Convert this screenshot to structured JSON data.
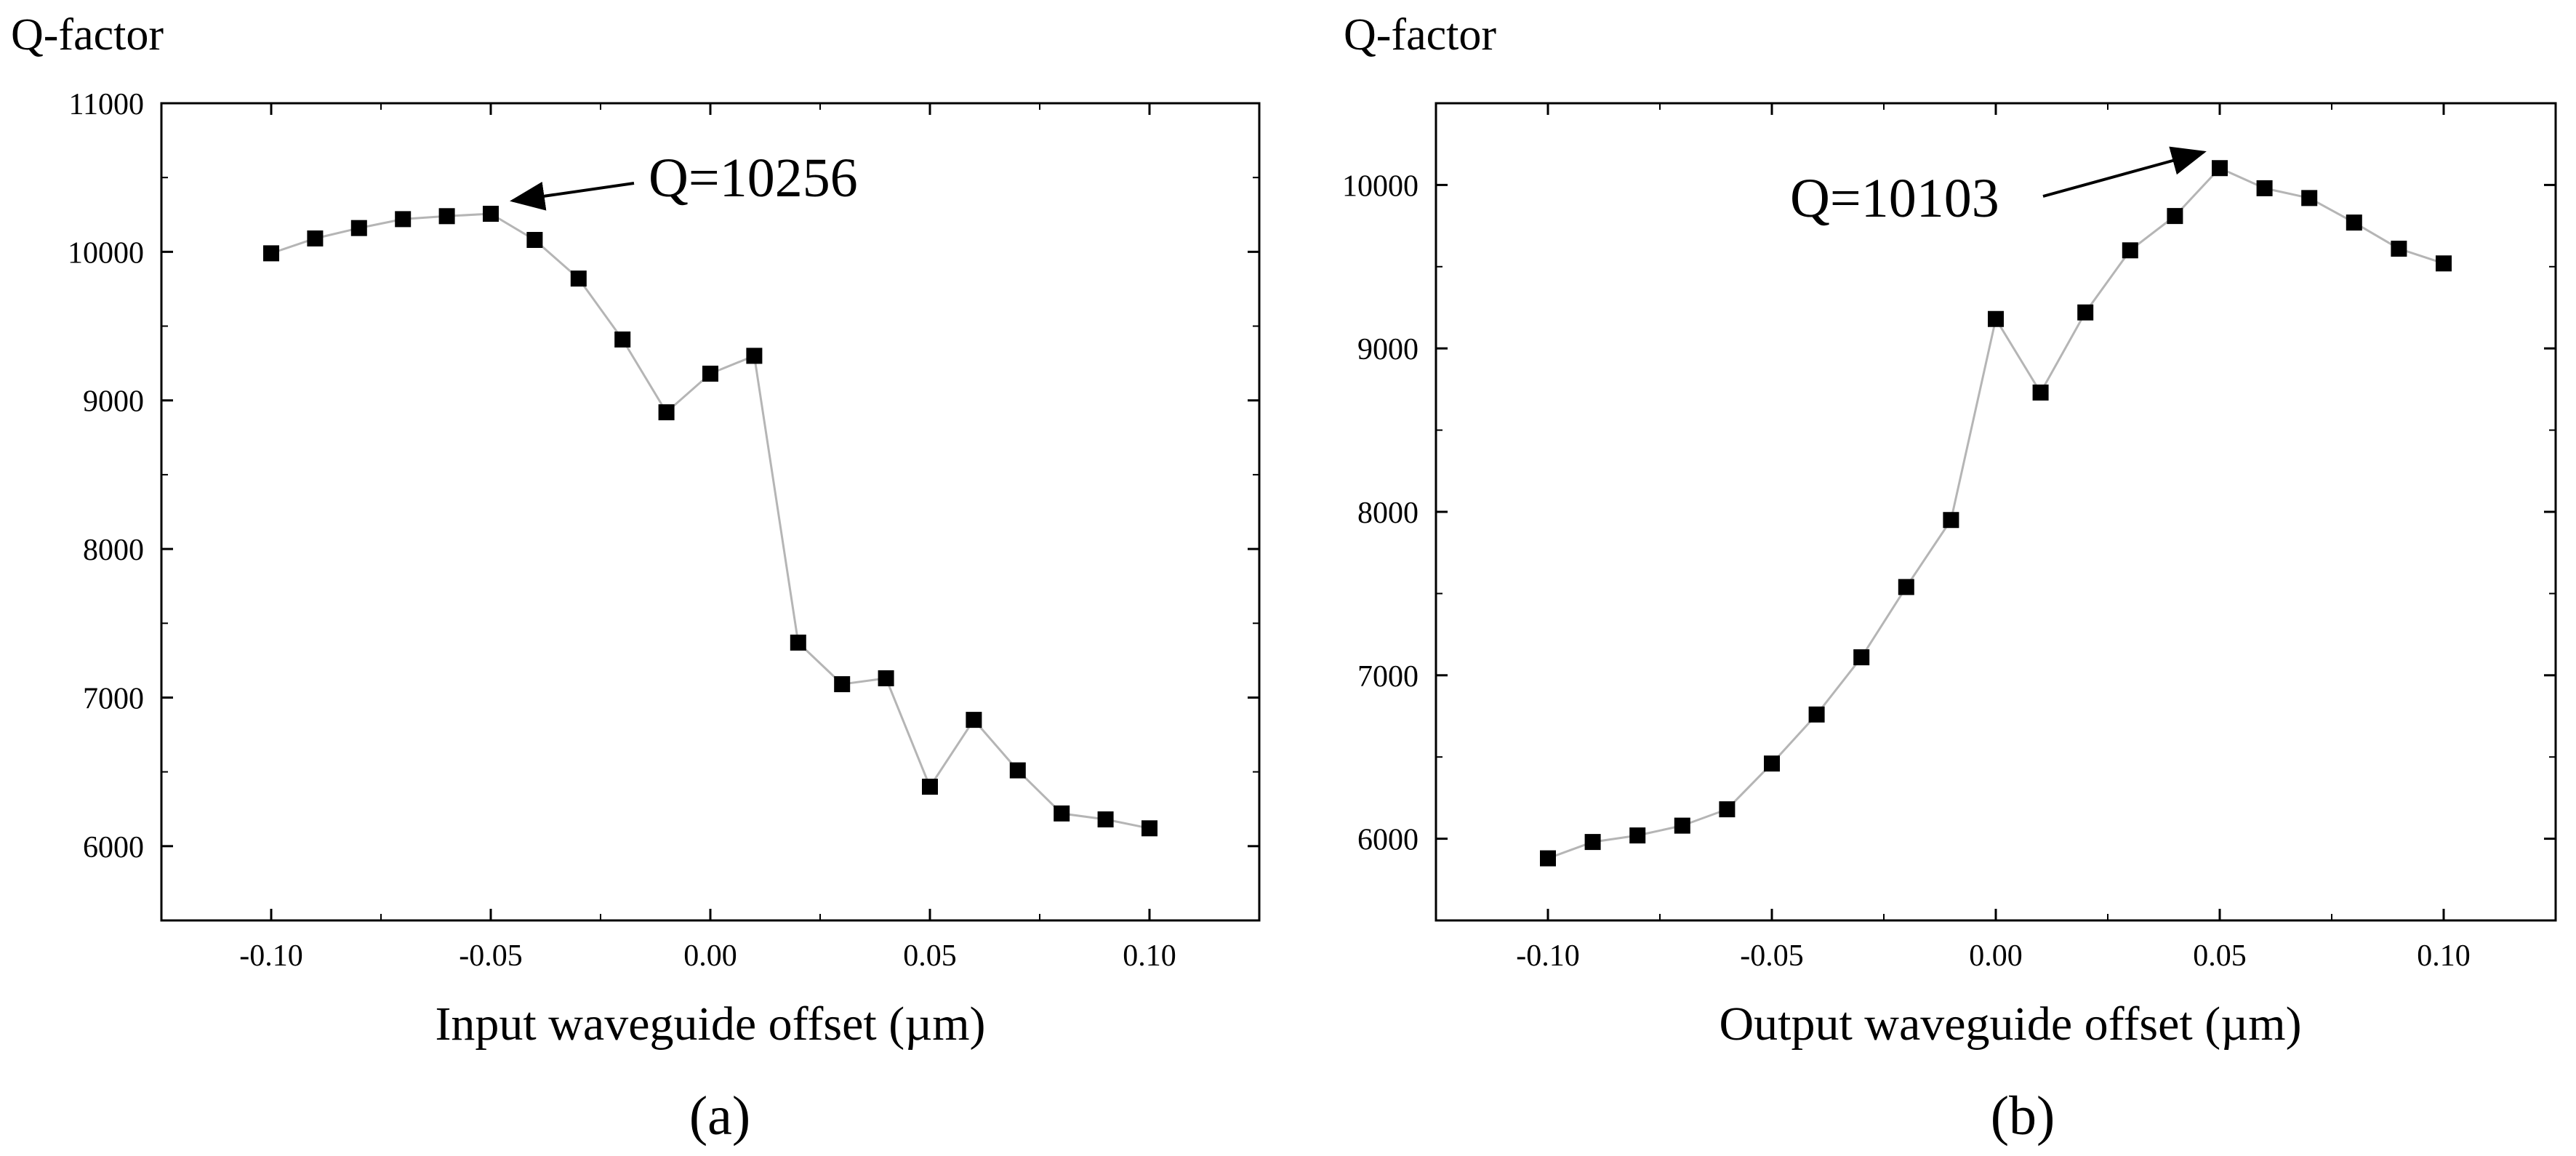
{
  "chart_data": [
    {
      "type": "line",
      "panel_label": "(a)",
      "ylabel": "Q-factor",
      "xlabel": "Input waveguide offset (µm)",
      "xlim": [
        -0.125,
        0.125
      ],
      "ylim": [
        5500,
        11000
      ],
      "xticks": [
        -0.1,
        -0.05,
        0.0,
        0.05,
        0.1
      ],
      "xtick_labels": [
        "-0.10",
        "-0.05",
        "0.00",
        "0.05",
        "0.10"
      ],
      "yticks": [
        6000,
        7000,
        8000,
        9000,
        10000,
        11000
      ],
      "ytick_labels": [
        "6000",
        "7000",
        "8000",
        "9000",
        "10000",
        "11000"
      ],
      "grid": false,
      "marker": "square",
      "x": [
        -0.1,
        -0.09,
        -0.08,
        -0.07,
        -0.06,
        -0.05,
        -0.04,
        -0.03,
        -0.02,
        -0.01,
        0.0,
        0.01,
        0.02,
        0.03,
        0.04,
        0.05,
        0.06,
        0.07,
        0.08,
        0.09,
        0.1
      ],
      "y": [
        9990,
        10090,
        10160,
        10220,
        10240,
        10256,
        10080,
        9820,
        9410,
        8920,
        9180,
        9300,
        7370,
        7090,
        7130,
        6400,
        6850,
        6510,
        6220,
        6180,
        6120
      ],
      "annotation": {
        "text": "Q=10256",
        "x": -0.05,
        "y": 10256
      }
    },
    {
      "type": "line",
      "panel_label": "(b)",
      "ylabel": "Q-factor",
      "xlabel": "Output waveguide offset (µm)",
      "xlim": [
        -0.125,
        0.125
      ],
      "ylim": [
        5500,
        10500
      ],
      "xticks": [
        -0.1,
        -0.05,
        0.0,
        0.05,
        0.1
      ],
      "xtick_labels": [
        "-0.10",
        "-0.05",
        "0.00",
        "0.05",
        "0.10"
      ],
      "yticks": [
        6000,
        7000,
        8000,
        9000,
        10000
      ],
      "ytick_labels": [
        "6000",
        "7000",
        "8000",
        "9000",
        "10000"
      ],
      "grid": false,
      "marker": "square",
      "x": [
        -0.1,
        -0.09,
        -0.08,
        -0.07,
        -0.06,
        -0.05,
        -0.04,
        -0.03,
        -0.02,
        -0.01,
        0.0,
        0.01,
        0.02,
        0.03,
        0.04,
        0.05,
        0.06,
        0.07,
        0.08,
        0.09,
        0.1
      ],
      "y": [
        5880,
        5980,
        6020,
        6080,
        6180,
        6460,
        6760,
        7110,
        7540,
        7950,
        9180,
        8730,
        9220,
        9600,
        9810,
        10103,
        9980,
        9920,
        9770,
        9610,
        9520
      ],
      "annotation": {
        "text": "Q=10103",
        "x": 0.05,
        "y": 10103
      }
    }
  ],
  "colors": {
    "line": "#b5b5b5",
    "marker": "#000000",
    "axis": "#000000"
  }
}
